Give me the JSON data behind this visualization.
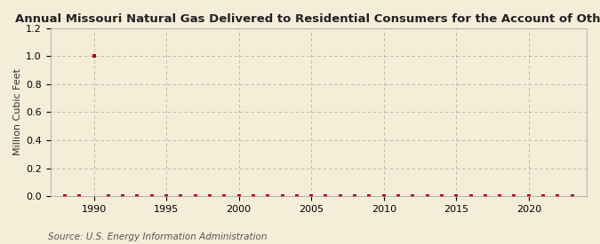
{
  "title": "Annual Missouri Natural Gas Delivered to Residential Consumers for the Account of Others",
  "ylabel": "Million Cubic Feet",
  "source": "Source: U.S. Energy Information Administration",
  "background_color": "#f5edd8",
  "plot_bg_color": "#f5edd8",
  "grid_color": "#b0a898",
  "marker_color": "#aa0000",
  "xlim": [
    1987,
    2024
  ],
  "ylim": [
    0,
    1.2
  ],
  "yticks": [
    0.0,
    0.2,
    0.4,
    0.6,
    0.8,
    1.0,
    1.2
  ],
  "xticks": [
    1990,
    1995,
    2000,
    2005,
    2010,
    2015,
    2020
  ],
  "data_x": [
    1988,
    1989,
    1990,
    1991,
    1992,
    1993,
    1994,
    1995,
    1996,
    1997,
    1998,
    1999,
    2000,
    2001,
    2002,
    2003,
    2004,
    2005,
    2006,
    2007,
    2008,
    2009,
    2010,
    2011,
    2012,
    2013,
    2014,
    2015,
    2016,
    2017,
    2018,
    2019,
    2020,
    2021,
    2022,
    2023
  ],
  "data_y": [
    0.0,
    0.0,
    1.0,
    0.0,
    0.0,
    0.0,
    0.0,
    0.0,
    0.0,
    0.0,
    0.0,
    0.0,
    0.0,
    0.0,
    0.0,
    0.0,
    0.0,
    0.0,
    0.0,
    0.0,
    0.0,
    0.0,
    0.0,
    0.0,
    0.0,
    0.0,
    0.0,
    0.0,
    0.0,
    0.0,
    0.0,
    0.0,
    0.0,
    0.0,
    0.0,
    0.0
  ],
  "title_fontsize": 9.5,
  "axis_label_fontsize": 8,
  "tick_fontsize": 8,
  "source_fontsize": 7.5
}
